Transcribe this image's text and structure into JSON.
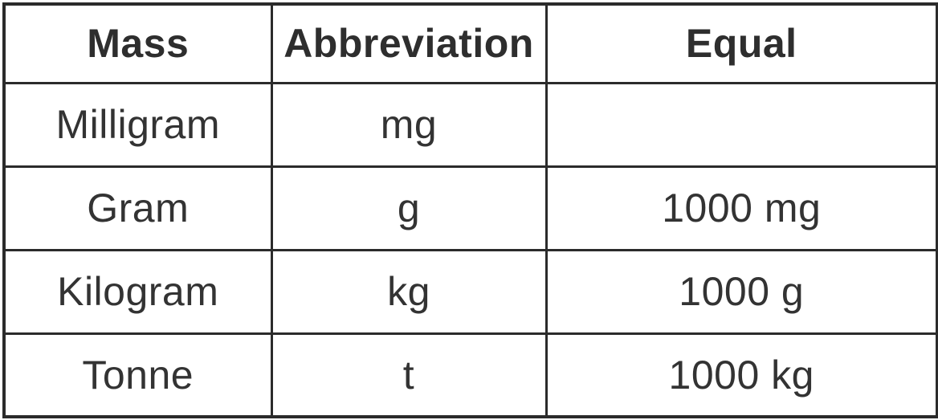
{
  "chart_data": {
    "type": "table",
    "columns": [
      "Mass",
      "Abbreviation",
      "Equal"
    ],
    "rows": [
      [
        "Milligram",
        "mg",
        ""
      ],
      [
        "Gram",
        "g",
        "1000 mg"
      ],
      [
        "Kilogram",
        "kg",
        "1000 g"
      ],
      [
        "Tonne",
        "t",
        "1000 kg"
      ]
    ]
  },
  "colors": {
    "border": "#2b2b2b",
    "text": "#333333",
    "background": "#ffffff"
  }
}
